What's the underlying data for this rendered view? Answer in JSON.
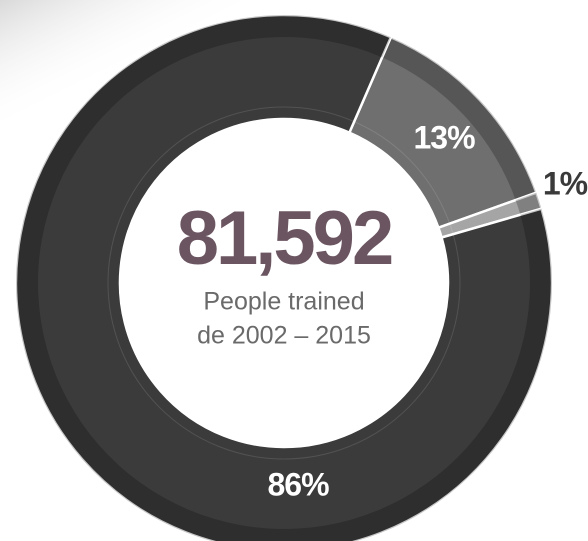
{
  "chart_data": {
    "type": "donut",
    "title": "81,592",
    "subtitle": [
      "People trained",
      "de 2002 – 2015"
    ],
    "categories": [
      null,
      null,
      null
    ],
    "values": [
      13,
      1,
      86
    ],
    "value_labels": [
      "13%",
      "1%",
      "86%"
    ],
    "colors": [
      "#6f6f6f",
      "#a5a5a5",
      "#3b3b3b"
    ]
  }
}
